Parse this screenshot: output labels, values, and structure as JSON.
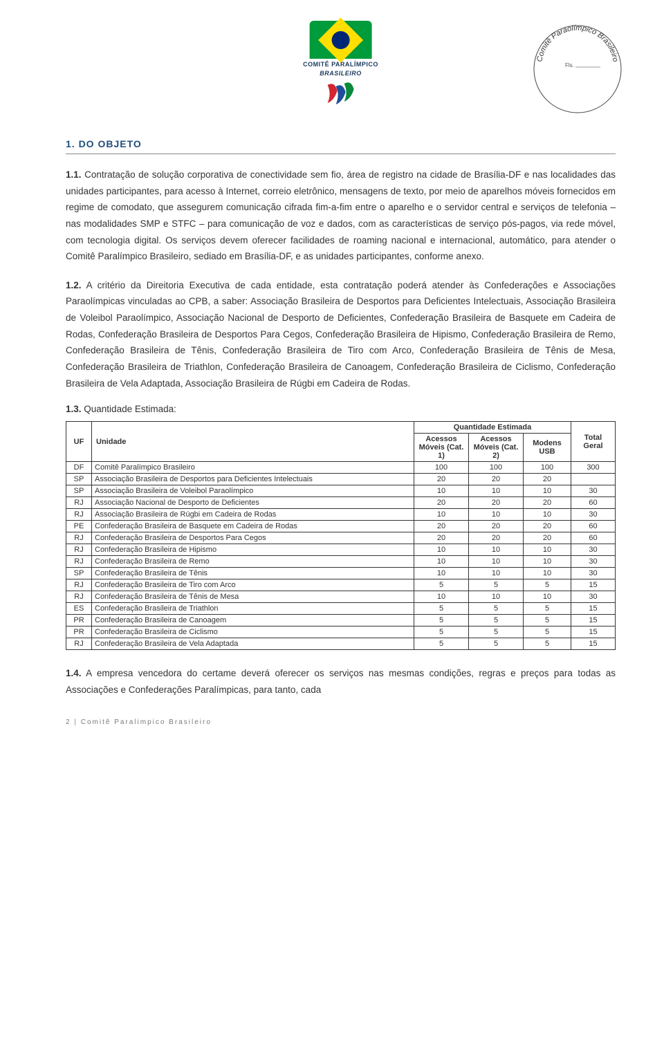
{
  "logo": {
    "line1": "COMITÊ PARALÍMPICO",
    "line2": "BRASILEIRO"
  },
  "stamp": {
    "arcText": "Comitê Paraolímpico Brasileiro",
    "fls": "Fls."
  },
  "section": {
    "title": "1. DO OBJETO"
  },
  "p11": {
    "num": "1.1.",
    "text": " Contratação de solução corporativa de conectividade sem fio, área de registro na cidade de Brasília-DF e nas localidades das unidades participantes, para acesso à Internet, correio eletrônico, mensagens de texto, por meio de aparelhos móveis fornecidos em regime de comodato, que assegurem comunicação cifrada fim-a-fim entre o aparelho e o servidor central e serviços de telefonia – nas modalidades SMP e STFC – para comunicação de voz e dados, com as características de serviço pós-pagos, via rede móvel, com tecnologia digital. Os serviços devem oferecer facilidades de roaming nacional e internacional, automático, para atender o Comitê Paralímpico Brasileiro, sediado em Brasília-DF, e as unidades participantes, conforme anexo."
  },
  "p12": {
    "num": "1.2.",
    "text": " A critério da Direitoria Executiva de cada entidade, esta contratação poderá atender às Confederações e Associações Paraolímpicas vinculadas ao CPB, a saber: Associação Brasileira de Desportos para Deficientes Intelectuais, Associação Brasileira de Voleibol Paraolímpico, Associação Nacional de Desporto de Deficientes, Confederação Brasileira de Basquete em Cadeira de Rodas, Confederação Brasileira de Desportos Para Cegos, Confederação Brasileira de Hipismo, Confederação Brasileira de Remo, Confederação Brasileira de Tênis, Confederação Brasileira de Tiro com Arco, Confederação Brasileira de Tênis de Mesa, Confederação Brasileira de Triathlon, Confederação Brasileira de Canoagem, Confederação Brasileira de Ciclismo, Confederação Brasileira de Vela Adaptada, Associação Brasileira de Rúgbi em Cadeira de Rodas."
  },
  "p13": {
    "num": "1.3.",
    "text": " Quantidade Estimada:"
  },
  "table": {
    "headers": {
      "groupTop": "Quantidade Estimada",
      "uf": "UF",
      "unidade": "Unidade",
      "cat1": "Acessos Móveis (Cat. 1)",
      "cat2": "Acessos Móveis (Cat. 2)",
      "modens": "Modens USB",
      "total": "Total Geral"
    },
    "rows": [
      {
        "uf": "DF",
        "unidade": "Comitê Paralímpico Brasileiro",
        "c1": "100",
        "c2": "100",
        "m": "100",
        "t": "300"
      },
      {
        "uf": "SP",
        "unidade": "Associação Brasileira de Desportos para Deficientes Intelectuais",
        "c1": "20",
        "c2": "20",
        "m": "20",
        "t": ""
      },
      {
        "uf": "SP",
        "unidade": "Associação Brasileira de Voleibol Paraolímpico",
        "c1": "10",
        "c2": "10",
        "m": "10",
        "t": "30"
      },
      {
        "uf": "RJ",
        "unidade": "Associação Nacional de Desporto de Deficientes",
        "c1": "20",
        "c2": "20",
        "m": "20",
        "t": "60"
      },
      {
        "uf": "RJ",
        "unidade": "Associação Brasileira de Rúgbi em Cadeira de Rodas",
        "c1": "10",
        "c2": "10",
        "m": "10",
        "t": "30"
      },
      {
        "uf": "PE",
        "unidade": "Confederação Brasileira de Basquete em Cadeira de Rodas",
        "c1": "20",
        "c2": "20",
        "m": "20",
        "t": "60"
      },
      {
        "uf": "RJ",
        "unidade": "Confederação Brasileira de Desportos Para Cegos",
        "c1": "20",
        "c2": "20",
        "m": "20",
        "t": "60"
      },
      {
        "uf": "RJ",
        "unidade": "Confederação Brasileira de Hipismo",
        "c1": "10",
        "c2": "10",
        "m": "10",
        "t": "30"
      },
      {
        "uf": "RJ",
        "unidade": "Confederação Brasileira de Remo",
        "c1": "10",
        "c2": "10",
        "m": "10",
        "t": "30"
      },
      {
        "uf": "SP",
        "unidade": "Confederação Brasileira de Tênis",
        "c1": "10",
        "c2": "10",
        "m": "10",
        "t": "30"
      },
      {
        "uf": "RJ",
        "unidade": "Confederação Brasileira de Tiro com Arco",
        "c1": "5",
        "c2": "5",
        "m": "5",
        "t": "15"
      },
      {
        "uf": "RJ",
        "unidade": "Confederação Brasileira de Tênis de Mesa",
        "c1": "10",
        "c2": "10",
        "m": "10",
        "t": "30"
      },
      {
        "uf": "ES",
        "unidade": "Confederação Brasileira de Triathlon",
        "c1": "5",
        "c2": "5",
        "m": "5",
        "t": "15"
      },
      {
        "uf": "PR",
        "unidade": "Confederação Brasileira de Canoagem",
        "c1": "5",
        "c2": "5",
        "m": "5",
        "t": "15"
      },
      {
        "uf": "PR",
        "unidade": "Confederação Brasileira de Ciclismo",
        "c1": "5",
        "c2": "5",
        "m": "5",
        "t": "15"
      },
      {
        "uf": "RJ",
        "unidade": "Confederação Brasileira de Vela Adaptada",
        "c1": "5",
        "c2": "5",
        "m": "5",
        "t": "15"
      }
    ]
  },
  "p14": {
    "num": "1.4.",
    "text": " A empresa vencedora do certame deverá oferecer os serviços nas mesmas condições, regras e preços para todas as Associações e Confederações Paralímpicas, para tanto, cada"
  },
  "footer": {
    "pageNum": "2",
    "text": "Comitê Paralimpico Brasileiro"
  }
}
